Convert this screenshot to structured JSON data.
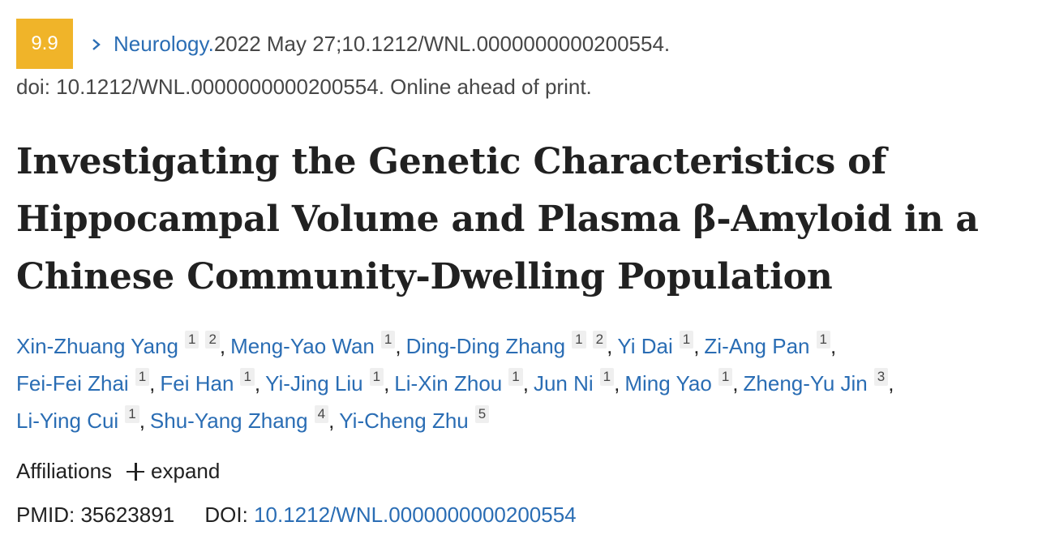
{
  "citation": {
    "impact_factor": "9.9",
    "journal": "Neurology.",
    "details": " 2022 May 27;10.1212/WNL.0000000000200554.",
    "doi_line": "doi: 10.1212/WNL.0000000000200554. Online ahead of print.",
    "badge_color": "#f0b429",
    "link_color": "#2a6db4"
  },
  "title_lines": [
    "Investigating the Genetic Characteristics of",
    "Hippocampal Volume and Plasma β-Amyloid in a",
    "Chinese Community-Dwelling Population"
  ],
  "authors": {
    "lines": [
      [
        {
          "name": "Xin-Zhuang Yang",
          "affs": [
            "1",
            "2"
          ],
          "sep": ","
        },
        {
          "name": "Meng-Yao Wan",
          "affs": [
            "1"
          ],
          "sep": ","
        },
        {
          "name": "Ding-Ding Zhang",
          "affs": [
            "1",
            "2"
          ],
          "sep": ","
        },
        {
          "name": "Yi Dai",
          "affs": [
            "1"
          ],
          "sep": ","
        },
        {
          "name": "Zi-Ang Pan",
          "affs": [
            "1"
          ],
          "sep": ","
        }
      ],
      [
        {
          "name": "Fei-Fei Zhai",
          "affs": [
            "1"
          ],
          "sep": ","
        },
        {
          "name": "Fei Han",
          "affs": [
            "1"
          ],
          "sep": ","
        },
        {
          "name": "Yi-Jing Liu",
          "affs": [
            "1"
          ],
          "sep": ","
        },
        {
          "name": "Li-Xin Zhou",
          "affs": [
            "1"
          ],
          "sep": ","
        },
        {
          "name": "Jun Ni",
          "affs": [
            "1"
          ],
          "sep": ","
        },
        {
          "name": "Ming Yao",
          "affs": [
            "1"
          ],
          "sep": ","
        },
        {
          "name": "Zheng-Yu Jin",
          "affs": [
            "3"
          ],
          "sep": ","
        }
      ],
      [
        {
          "name": "Li-Ying Cui",
          "affs": [
            "1"
          ],
          "sep": ","
        },
        {
          "name": "Shu-Yang Zhang",
          "affs": [
            "4"
          ],
          "sep": ","
        },
        {
          "name": "Yi-Cheng Zhu",
          "affs": [
            "5"
          ],
          "sep": ""
        }
      ]
    ]
  },
  "affiliations": {
    "label": "Affiliations",
    "expand_label": "expand"
  },
  "ids": {
    "pmid_label": "PMID:",
    "pmid_value": "35623891",
    "doi_label": "DOI:",
    "doi_value": "10.1212/WNL.0000000000200554"
  }
}
